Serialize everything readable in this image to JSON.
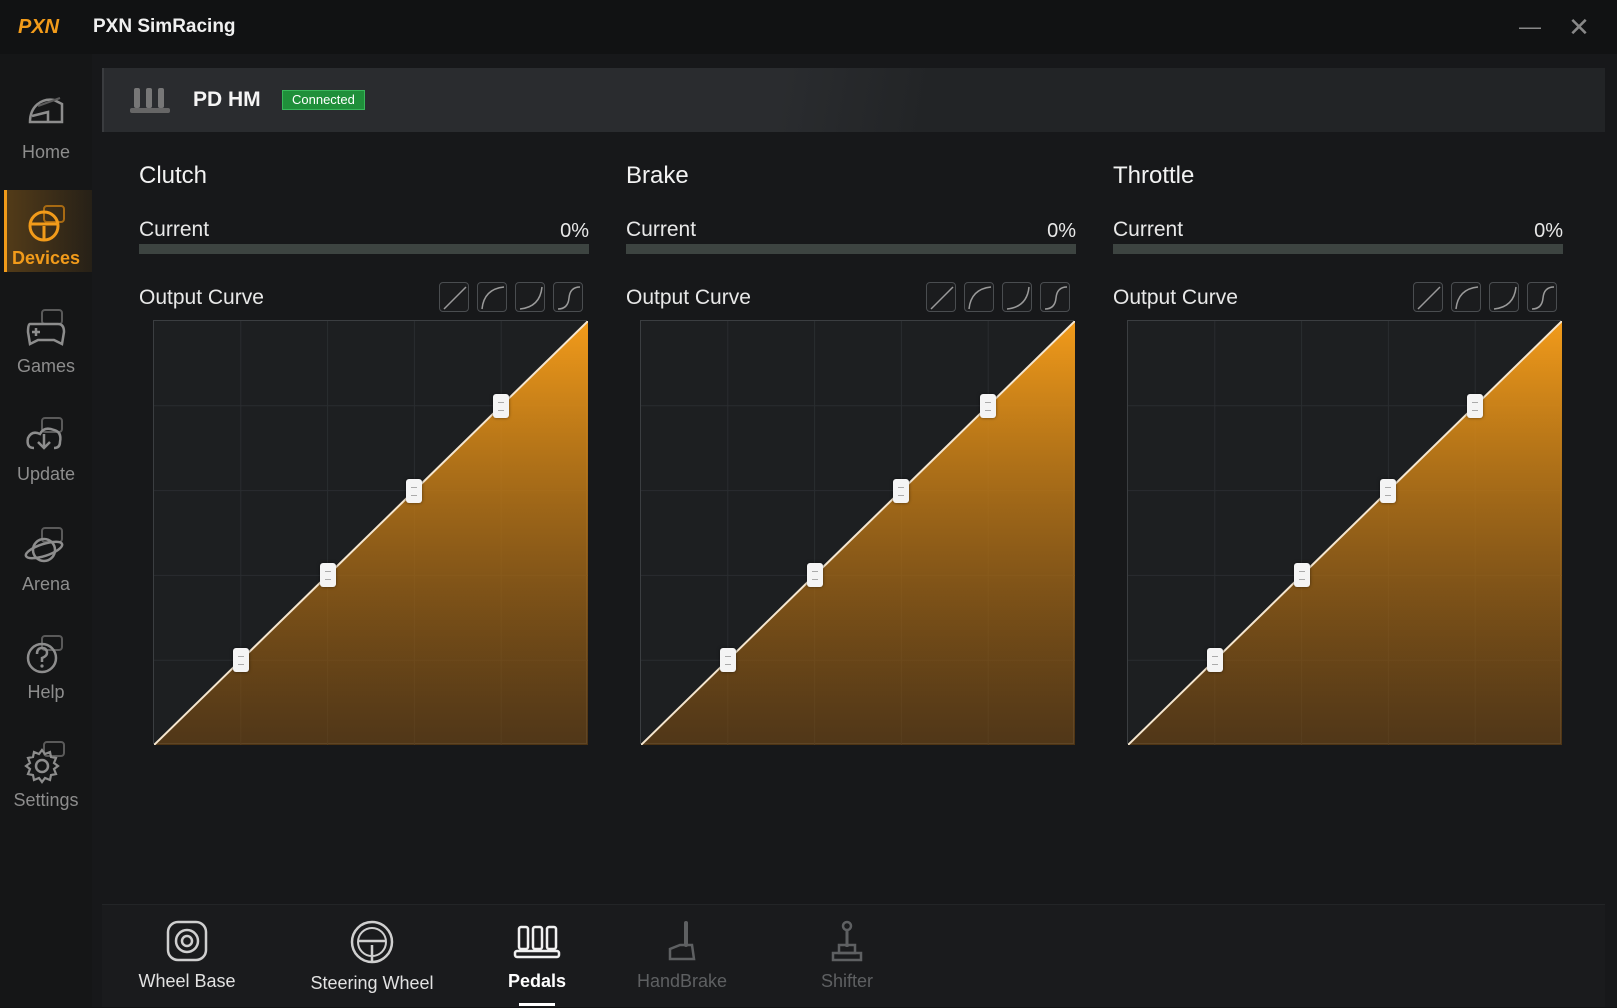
{
  "app": {
    "title": "PXN SimRacing",
    "logo_text": "PXN"
  },
  "window": {
    "minimize": "—",
    "close": "✕"
  },
  "sidebar": {
    "items": [
      {
        "label": "Home",
        "icon": "helmet-icon",
        "active": false
      },
      {
        "label": "Devices",
        "icon": "steering-wheel-icon",
        "active": true
      },
      {
        "label": "Games",
        "icon": "gamepad-icon",
        "active": false
      },
      {
        "label": "Update",
        "icon": "download-icon",
        "active": false
      },
      {
        "label": "Arena",
        "icon": "planet-icon",
        "active": false
      },
      {
        "label": "Help",
        "icon": "help-icon",
        "active": false
      },
      {
        "label": "Settings",
        "icon": "gear-icon",
        "active": false
      }
    ]
  },
  "device": {
    "name": "PD HM",
    "status": "Connected"
  },
  "panels": [
    {
      "title": "Clutch",
      "current_label": "Current",
      "current_value": "0%",
      "current_fraction": 0,
      "output_label": "Output Curve",
      "curve_points": [
        [
          0.2,
          0.2
        ],
        [
          0.4,
          0.4
        ],
        [
          0.6,
          0.6
        ],
        [
          0.8,
          0.8
        ]
      ]
    },
    {
      "title": "Brake",
      "current_label": "Current",
      "current_value": "0%",
      "current_fraction": 0,
      "output_label": "Output Curve",
      "curve_points": [
        [
          0.2,
          0.2
        ],
        [
          0.4,
          0.4
        ],
        [
          0.6,
          0.6
        ],
        [
          0.8,
          0.8
        ]
      ]
    },
    {
      "title": "Throttle",
      "current_label": "Current",
      "current_value": "0%",
      "current_fraction": 0,
      "output_label": "Output Curve",
      "curve_points": [
        [
          0.2,
          0.2
        ],
        [
          0.4,
          0.4
        ],
        [
          0.6,
          0.6
        ],
        [
          0.8,
          0.8
        ]
      ]
    }
  ],
  "curve_presets": [
    "linear-curve-icon",
    "concave-curve-icon",
    "convex-curve-icon",
    "s-curve-icon"
  ],
  "bottom_tabs": [
    {
      "label": "Wheel Base",
      "icon": "wheel-base-icon",
      "state": "normal"
    },
    {
      "label": "Steering Wheel",
      "icon": "steering-wheel-icon",
      "state": "normal"
    },
    {
      "label": "Pedals",
      "icon": "pedals-icon",
      "state": "active"
    },
    {
      "label": "HandBrake",
      "icon": "handbrake-icon",
      "state": "disabled"
    },
    {
      "label": "Shifter",
      "icon": "shifter-icon",
      "state": "disabled"
    }
  ],
  "colors": {
    "accent": "#f29b1a",
    "status_green": "#1f8f3a"
  }
}
